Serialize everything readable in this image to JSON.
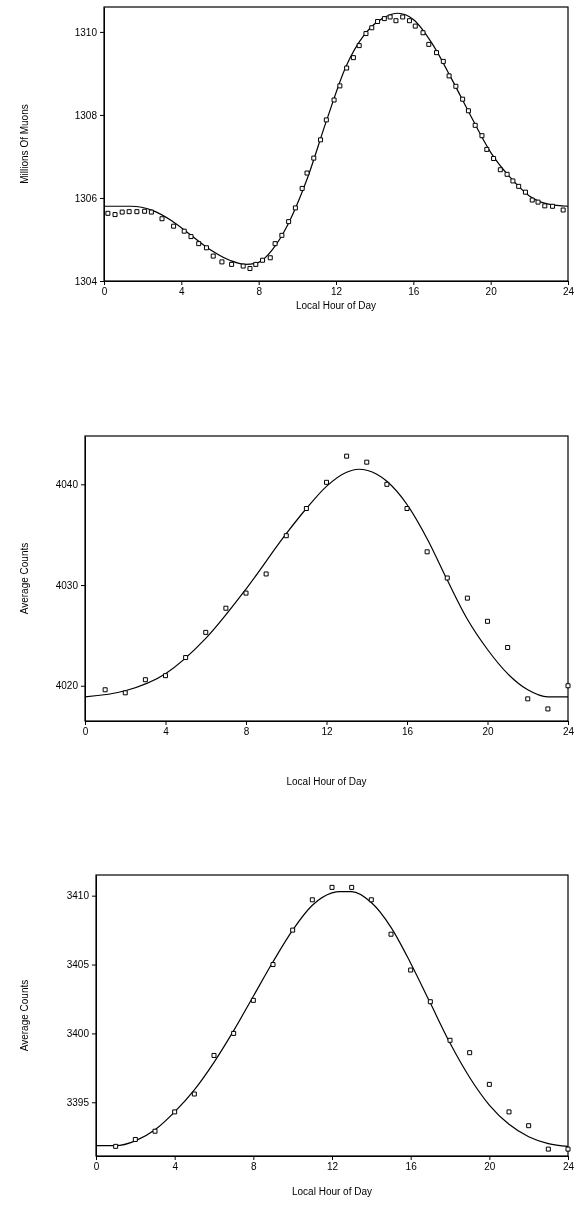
{
  "chart_data": [
    {
      "type": "scatter",
      "xlabel": "Local Hour of Day",
      "ylabel": "Millions Of Muons",
      "xlim": [
        0,
        24
      ],
      "ylim": [
        1304,
        1310.6
      ],
      "xticks": [
        0,
        4,
        8,
        12,
        16,
        20,
        24
      ],
      "yticks": [
        1304,
        1306,
        1308,
        1310
      ],
      "grid": false,
      "series": [
        {
          "marker": "square",
          "color": "#000000",
          "x": [
            0.2,
            0.57,
            0.94,
            1.3,
            1.7,
            2.1,
            2.45,
            3.0,
            3.6,
            4.15,
            4.5,
            4.9,
            5.3,
            5.65,
            6.1,
            6.6,
            7.2,
            7.55,
            7.85,
            8.2,
            8.6,
            8.85,
            9.2,
            9.55,
            9.9,
            10.25,
            10.5,
            10.85,
            11.2,
            11.5,
            11.9,
            12.2,
            12.55,
            12.9,
            13.2,
            13.55,
            13.85,
            14.15,
            14.5,
            14.8,
            15.1,
            15.45,
            15.8,
            16.1,
            16.5,
            16.8,
            17.2,
            17.55,
            17.85,
            18.2,
            18.55,
            18.85,
            19.2,
            19.55,
            19.8,
            20.15,
            20.5,
            20.85,
            21.15,
            21.45,
            21.8,
            22.15,
            22.45,
            22.8,
            23.2,
            23.75
          ],
          "values": [
            1305.63,
            1305.6,
            1305.66,
            1305.67,
            1305.67,
            1305.68,
            1305.66,
            1305.5,
            1305.32,
            1305.2,
            1305.07,
            1304.9,
            1304.8,
            1304.6,
            1304.46,
            1304.4,
            1304.36,
            1304.3,
            1304.4,
            1304.5,
            1304.56,
            1304.9,
            1305.1,
            1305.43,
            1305.76,
            1306.23,
            1306.6,
            1306.96,
            1307.4,
            1307.88,
            1308.36,
            1308.7,
            1309.13,
            1309.38,
            1309.67,
            1309.96,
            1310.1,
            1310.25,
            1310.32,
            1310.36,
            1310.27,
            1310.36,
            1310.27,
            1310.14,
            1309.98,
            1309.7,
            1309.5,
            1309.29,
            1308.94,
            1308.69,
            1308.38,
            1308.1,
            1307.75,
            1307.5,
            1307.17,
            1306.95,
            1306.68,
            1306.57,
            1306.41,
            1306.28,
            1306.14,
            1305.95,
            1305.9,
            1305.81,
            1305.8,
            1305.71
          ]
        },
        {
          "type": "line",
          "line_style": "solid",
          "color": "#000000",
          "x": [
            0,
            1.4,
            2.5,
            3.5,
            4.5,
            5.5,
            6.5,
            7.3,
            8,
            8.7,
            9.5,
            10.5,
            11.5,
            12.5,
            13.5,
            14.5,
            15.2,
            16,
            17,
            18,
            19,
            20,
            21,
            22,
            23,
            24
          ],
          "values": [
            1305.8,
            1305.8,
            1305.7,
            1305.45,
            1305.1,
            1304.75,
            1304.5,
            1304.4,
            1304.45,
            1304.75,
            1305.35,
            1306.45,
            1307.85,
            1309.15,
            1309.95,
            1310.35,
            1310.45,
            1310.3,
            1309.7,
            1308.85,
            1307.95,
            1307.1,
            1306.5,
            1306.05,
            1305.85,
            1305.8
          ]
        }
      ]
    },
    {
      "type": "scatter",
      "xlabel": "Local Hour of Day",
      "ylabel": "Average Counts",
      "xlim": [
        0,
        24
      ],
      "ylim": [
        4016.5,
        4044.8
      ],
      "xticks": [
        0,
        4,
        8,
        12,
        16,
        20,
        24
      ],
      "yticks": [
        4020,
        4030,
        4040
      ],
      "grid": false,
      "series": [
        {
          "marker": "square",
          "color": "#000000",
          "x": [
            1,
            2,
            3,
            4,
            5,
            6,
            7,
            8,
            9,
            10,
            11,
            12,
            13,
            14,
            15,
            16,
            17,
            18,
            19,
            20,
            21,
            22,
            23,
            24
          ],
          "values": [
            4019.6,
            4019.3,
            4020.6,
            4021.0,
            4022.8,
            4025.3,
            4027.7,
            4029.2,
            4031.1,
            4034.9,
            4037.6,
            4040.2,
            4042.8,
            4042.2,
            4040.0,
            4037.6,
            4033.3,
            4030.7,
            4028.7,
            4026.4,
            4023.8,
            4018.7,
            4017.7,
            4020.0
          ]
        },
        {
          "type": "line",
          "line_style": "solid",
          "color": "#000000",
          "x": [
            0,
            2,
            4,
            6,
            8,
            10,
            11,
            12,
            13,
            13.6,
            14.5,
            15,
            16,
            17,
            18,
            19,
            20,
            21,
            22,
            23,
            24
          ],
          "values": [
            4018.9,
            4019.5,
            4021.2,
            4024.7,
            4029.6,
            4035.1,
            4037.6,
            4039.8,
            4041.2,
            4041.5,
            4041.0,
            4040.3,
            4038.0,
            4034.6,
            4030.5,
            4026.6,
            4023.6,
            4021.2,
            4019.6,
            4018.9,
            4018.9
          ]
        }
      ]
    },
    {
      "type": "scatter",
      "xlabel": "Local Hour of Day",
      "ylabel": "Average Counts",
      "xlim": [
        0,
        24
      ],
      "ylim": [
        3391.1,
        3411.5
      ],
      "xticks": [
        0,
        4,
        8,
        12,
        16,
        20,
        24
      ],
      "yticks": [
        3395,
        3400,
        3405,
        3410
      ],
      "grid": false,
      "series": [
        {
          "marker": "square",
          "color": "#000000",
          "x": [
            1,
            2,
            3,
            4,
            5,
            6,
            7,
            8,
            9,
            10,
            11,
            12,
            13,
            14,
            15,
            16,
            17,
            18,
            19,
            20,
            21,
            22,
            23,
            24
          ],
          "values": [
            3391.8,
            3392.3,
            3392.9,
            3394.3,
            3395.6,
            3398.4,
            3400.0,
            3402.4,
            3405.0,
            3407.5,
            3409.7,
            3410.6,
            3410.6,
            3409.7,
            3407.2,
            3404.6,
            3402.3,
            3399.5,
            3398.6,
            3396.3,
            3394.3,
            3393.3,
            3391.6,
            3391.6
          ]
        },
        {
          "type": "line",
          "line_style": "solid",
          "color": "#000000",
          "x": [
            0,
            1,
            2,
            3,
            4,
            5,
            6,
            7,
            8,
            9,
            10,
            11,
            12,
            12.4,
            13,
            14,
            15,
            16,
            17,
            18,
            19,
            20,
            21,
            22,
            23,
            24
          ],
          "values": [
            3391.85,
            3391.85,
            3392.2,
            3393.0,
            3394.3,
            3395.9,
            3397.9,
            3400.2,
            3402.7,
            3405.2,
            3407.5,
            3409.3,
            3410.2,
            3410.3,
            3410.3,
            3409.5,
            3407.7,
            3405.1,
            3402.2,
            3399.3,
            3396.8,
            3394.8,
            3393.4,
            3392.5,
            3392.0,
            3391.8
          ]
        }
      ]
    }
  ]
}
